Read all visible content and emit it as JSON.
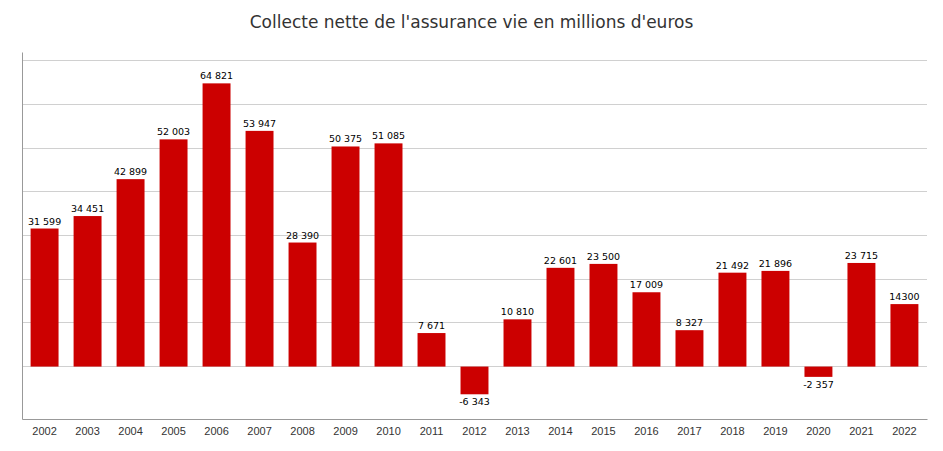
{
  "chart_data": {
    "type": "bar",
    "title": "Collecte nette de l'assurance vie en millions d'euros",
    "categories": [
      "2002",
      "2003",
      "2004",
      "2005",
      "2006",
      "2007",
      "2008",
      "2009",
      "2010",
      "2011",
      "2012",
      "2013",
      "2014",
      "2015",
      "2016",
      "2017",
      "2018",
      "2019",
      "2020",
      "2021",
      "2022"
    ],
    "values": [
      31599,
      34451,
      42899,
      52003,
      64821,
      53947,
      28390,
      50375,
      51085,
      7671,
      -6343,
      10810,
      22601,
      23500,
      17009,
      8327,
      21492,
      21896,
      -2357,
      23715,
      14300
    ],
    "value_labels": [
      "31 599",
      "34 451",
      "42 899",
      "52 003",
      "64 821",
      "53 947",
      "28 390",
      "50 375",
      "51 085",
      "7 671",
      "-6 343",
      "10 810",
      "22 601",
      "23 500",
      "17 009",
      "8 327",
      "21 492",
      "21 896",
      "-2 357",
      "23 715",
      "14300"
    ],
    "color": "#cc0000",
    "ylim": [
      -12000,
      72000
    ],
    "yticks": [
      0,
      10000,
      20000,
      30000,
      40000,
      50000,
      60000,
      70000
    ],
    "grid": true,
    "data_labels": true,
    "tick_labels": "x"
  }
}
